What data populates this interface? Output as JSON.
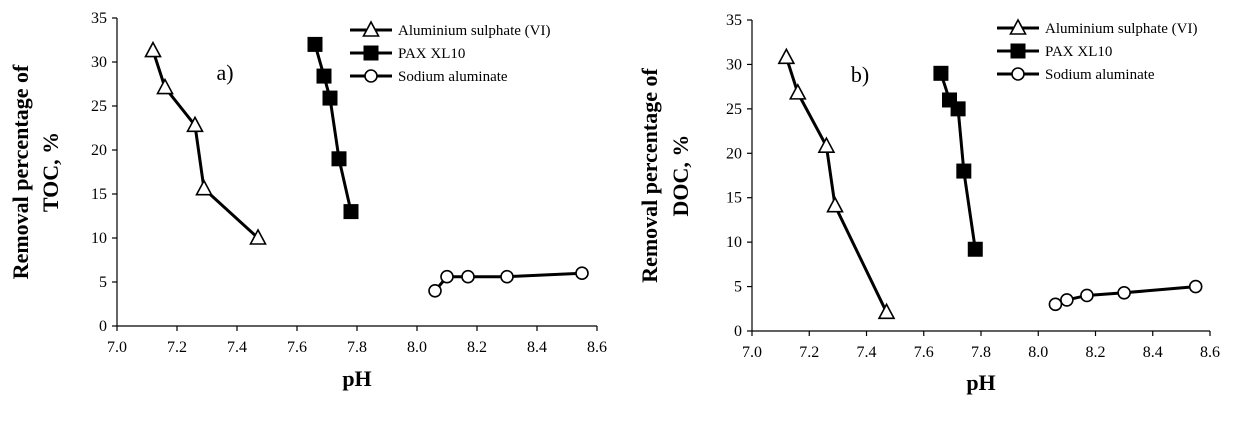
{
  "chart_data": [
    {
      "type": "line",
      "panel_label": "a)",
      "xlabel": "pH",
      "ylabel_lines": [
        "Removal percentage of",
        "TOC, %"
      ],
      "xlim": [
        7.0,
        8.6
      ],
      "ylim": [
        0,
        35
      ],
      "xticks": [
        "7.0",
        "7.2",
        "7.4",
        "7.6",
        "7.8",
        "8.0",
        "8.2",
        "8.4",
        "8.6"
      ],
      "yticks": [
        "0",
        "5",
        "10",
        "15",
        "20",
        "25",
        "30",
        "35"
      ],
      "legend_position": "top-right",
      "series": [
        {
          "name": "Aluminium sulphate (VI)",
          "marker": "triangle",
          "x": [
            7.12,
            7.16,
            7.26,
            7.29,
            7.47
          ],
          "y": [
            31.3,
            27.1,
            22.8,
            15.6,
            10.0
          ]
        },
        {
          "name": "PAX XL10",
          "marker": "square",
          "x": [
            7.66,
            7.69,
            7.71,
            7.74,
            7.78
          ],
          "y": [
            32.0,
            28.4,
            25.9,
            19.0,
            13.0
          ]
        },
        {
          "name": "Sodium aluminate",
          "marker": "circle",
          "x": [
            8.06,
            8.1,
            8.17,
            8.3,
            8.55
          ],
          "y": [
            4.0,
            5.6,
            5.6,
            5.6,
            6.0
          ]
        }
      ]
    },
    {
      "type": "line",
      "panel_label": "b)",
      "xlabel": "pH",
      "ylabel_lines": [
        "Removal percentage of",
        "DOC, %"
      ],
      "xlim": [
        7.0,
        8.6
      ],
      "ylim": [
        0,
        35
      ],
      "xticks": [
        "7.0",
        "7.2",
        "7.4",
        "7.6",
        "7.8",
        "8.0",
        "8.2",
        "8.4",
        "8.6"
      ],
      "yticks": [
        "0",
        "5",
        "10",
        "15",
        "20",
        "25",
        "30",
        "35"
      ],
      "legend_position": "top-right",
      "series": [
        {
          "name": "Aluminium sulphate (VI)",
          "marker": "triangle",
          "x": [
            7.12,
            7.16,
            7.26,
            7.29,
            7.47
          ],
          "y": [
            30.8,
            26.8,
            20.8,
            14.1,
            2.1
          ]
        },
        {
          "name": "PAX XL10",
          "marker": "square",
          "x": [
            7.66,
            7.69,
            7.72,
            7.74,
            7.78
          ],
          "y": [
            29.0,
            26.0,
            25.0,
            18.0,
            9.2
          ]
        },
        {
          "name": "Sodium aluminate",
          "marker": "circle",
          "x": [
            8.06,
            8.1,
            8.17,
            8.3,
            8.55
          ],
          "y": [
            3.0,
            3.5,
            4.0,
            4.3,
            5.0
          ]
        }
      ]
    }
  ]
}
